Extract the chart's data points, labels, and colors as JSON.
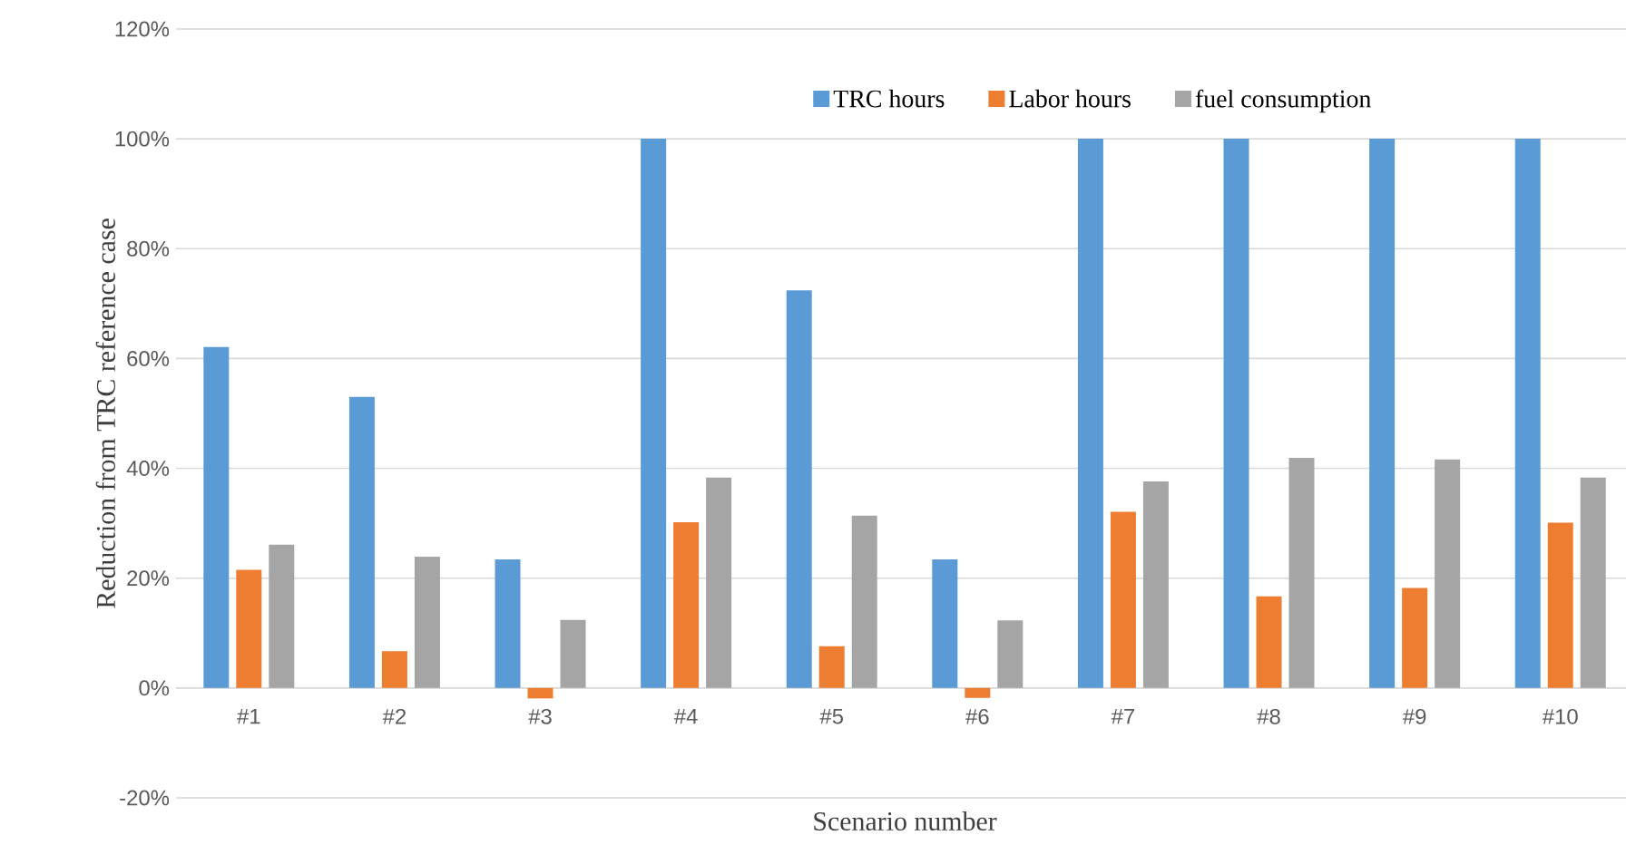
{
  "chart_data": {
    "type": "bar",
    "xlabel": "Scenario number",
    "ylabel": "Reduction from TRC reference case",
    "categories": [
      "#1",
      "#2",
      "#3",
      "#4",
      "#5",
      "#6",
      "#7",
      "#8",
      "#9",
      "#10"
    ],
    "series": [
      {
        "name": "TRC hours",
        "color": "#5b9bd5",
        "values": [
          62.1,
          53.0,
          23.4,
          100,
          72.4,
          23.4,
          100,
          100,
          100,
          100
        ]
      },
      {
        "name": "Labor hours",
        "color": "#ed7d31",
        "values": [
          21.5,
          6.7,
          -1.9,
          30.2,
          7.6,
          -1.8,
          32.1,
          16.7,
          18.2,
          30.1
        ]
      },
      {
        "name": "fuel consumption",
        "color": "#a5a5a5",
        "values": [
          26.1,
          23.9,
          12.4,
          38.3,
          31.4,
          12.3,
          37.6,
          41.9,
          41.6,
          38.3
        ]
      }
    ],
    "ylim": [
      -20,
      120
    ],
    "yticks": [
      {
        "value": -20,
        "label": "-20%"
      },
      {
        "value": 0,
        "label": "0%"
      },
      {
        "value": 20,
        "label": "20%"
      },
      {
        "value": 40,
        "label": "40%"
      },
      {
        "value": 60,
        "label": "60%"
      },
      {
        "value": 80,
        "label": "80%"
      },
      {
        "value": 100,
        "label": "100%"
      },
      {
        "value": 120,
        "label": "120%"
      }
    ],
    "grid": "y",
    "legend": "top right"
  }
}
